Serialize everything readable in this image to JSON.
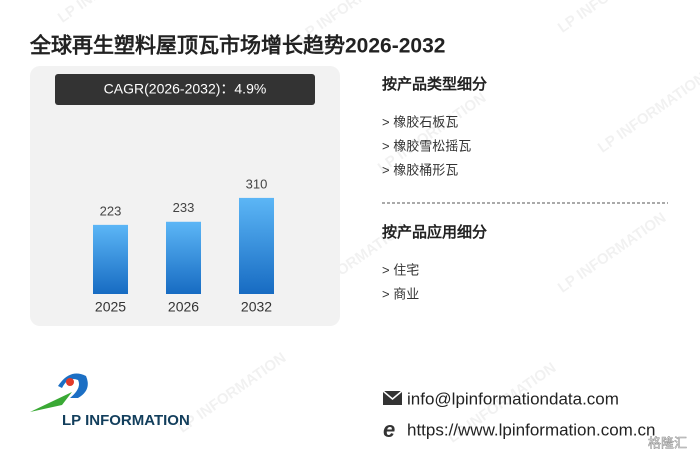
{
  "title": "全球再生塑料屋顶瓦市场增长趋势2026-2032",
  "watermark": "LP INFORMATION",
  "chart_data": {
    "type": "bar",
    "cagr_label": "CAGR(2026-2032)：4.9%",
    "categories": [
      "2025",
      "2026",
      "2032"
    ],
    "values": [
      223,
      233,
      310
    ],
    "color": "#2b8ad8"
  },
  "segments": [
    {
      "heading": "按产品类型细分",
      "items": [
        "> 橡胶石板瓦",
        "> 橡胶雪松摇瓦",
        "> 橡胶桶形瓦"
      ]
    },
    {
      "heading": "按产品应用细分",
      "items": [
        "> 住宅",
        "> 商业"
      ]
    }
  ],
  "logo": "LP INFORMATION",
  "contact": {
    "email": "info@lpinformationdata.com",
    "website": "https://www.lpinformation.com.cn"
  },
  "source_mark": "格隆汇"
}
